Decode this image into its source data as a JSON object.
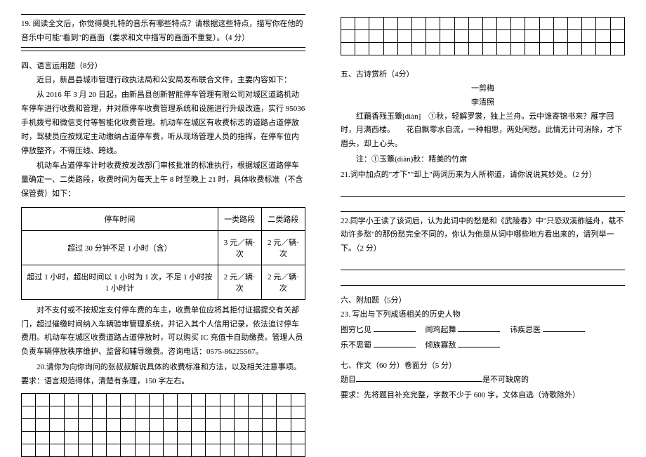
{
  "left": {
    "q19": "19. 阅读全文后，你觉得莫扎特的音乐有哪些特点？请根据这些特点，描写你在他的音乐中可能\"看到\"的画面（要求和文中描写的画面不重复）。（4 分）",
    "section4_title": "四、语言运用题（8分）",
    "p4_1": "近日，新昌县城市管理行政执法局和公安局发布联合文件，主要内容如下：",
    "p4_2": "从 2016 年 3 月 20 日起，由新昌县创新智能停车管理有限公司对城区道路机动车停车进行收费和管理，并对原停车收费管理系统和设施进行升级改造，实行 95036 手机拨号和微信支付等智能化收费管理。机动车在城区有收费标志的道路占道停放时，驾驶员应按规定主动缴纳占道停车费，听从现场管理人员的指挥，在停车位内停放整齐，不得压线、跨线。",
    "p4_3": "机动车占道停车计时收费按发改部门审核批准的标准执行，根据城区道路停车量确定一、二类路段，收费时间为每天上午 8 时至晚上 21 时，具体收费标准（不含保管费）如下：",
    "fee_table": {
      "headers": [
        "停车时间",
        "一类路段",
        "二类路段"
      ],
      "rows": [
        [
          "超过 30 分钟不足 1 小时（含）",
          "3 元／辆·次",
          "2 元／辆·次"
        ],
        [
          "超过 1 小时，超出时间以 1 小时为 1 次，不足 1 小时按 1 小时计",
          "2 元／辆·次",
          "2 元／辆·次"
        ]
      ]
    },
    "p4_4": "对不支付或不按规定支付停车费的车主，收费单位应将其拒付证据提交有关部门，超过催缴时间纳入车辆验审管理系统，并记入其个人信用记录，依法追讨停车费用。机动车在城区收费道路占道停放时，可以购买 IC 充值卡自助缴费。管理人员负责车辆停放秩序维护、监督和辅导缴费。咨询电话：0575-86225567。",
    "q20": "20.请你为向你询问的张叔叔解说具体的收费标准和方法，以及相关注意事项。要求：语言规范得体，清楚有条理，150 字左右。",
    "grid": {
      "cols": 20,
      "rows": 5
    }
  },
  "right": {
    "grid_top": {
      "cols": 20,
      "rows": 3
    },
    "section5_title": "五、古诗赏析（4分）",
    "poem_title": "一剪梅",
    "poem_author": "李清照",
    "poem_line1": "红藕香残玉簟[diàn]　①秋，轻解罗裳，独上兰舟。云中谁寄锦书来？雁字回时，月满西楼。　　花自飘零水自流，一种相思，两处闲愁。此情无计可消除，才下眉头，却上心头。",
    "poem_note": "注：①玉簟(diàn)秋：精美的竹席",
    "q21": "21.词中加点的\"才下\"\"却上\"两词历来为人所称道，请你说说其妙处。（2 分）",
    "q22": "22.同学小王读了该词后，认为此词中的愁是和《武陵春》中\"只恐双溪舴艋舟，载不动许多愁\"的那份愁完全不同的，你认为他是从词中哪些地方看出来的，请列举一下。（2 分）",
    "section6_title": "六、附加题（5分）",
    "q23": "23. 写出与下列成语相关的历史人物",
    "idioms": [
      {
        "a": "图穷匕见",
        "b": "闻鸡起舞",
        "c": "讳疾忌医"
      },
      {
        "a": "乐不思蜀",
        "b": "倾族寡敌",
        "c": ""
      }
    ],
    "section7_title": "七、作文（60 分）卷面分（5 分）",
    "essay_topic_label": "题目",
    "essay_topic_suffix": "是不可缺席的",
    "essay_req": "要求：先将题目补充完整，字数不少于 600 字，文体自选（诗歌除外）"
  }
}
